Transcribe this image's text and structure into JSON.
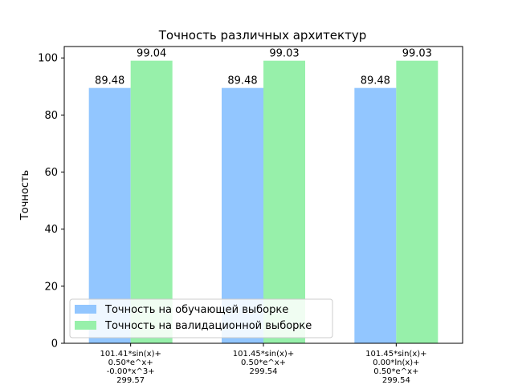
{
  "chart_data": {
    "type": "bar",
    "title": "Точность различных архитектур",
    "xlabel": "",
    "ylabel": "Точность",
    "ylim": [
      0,
      104
    ],
    "yticks": [
      0,
      20,
      40,
      60,
      80,
      100
    ],
    "grid": false,
    "legend_position": "lower-left",
    "categories": [
      [
        "101.41*sin(x)+",
        "0.50*e^x+",
        "-0.00*x^3+",
        "299.57"
      ],
      [
        "101.45*sin(x)+",
        "0.50*e^x+",
        "299.54"
      ],
      [
        "101.45*sin(x)+",
        "0.00*ln(x)+",
        "0.50*e^x+",
        "299.54"
      ]
    ],
    "series": [
      {
        "name": "Точность на обучающей выборке",
        "color": "#92c6ff",
        "values": [
          89.48,
          89.48,
          89.48
        ],
        "labels": [
          "89.48",
          "89.48",
          "89.48"
        ]
      },
      {
        "name": "Точность на валидационной выборке",
        "color": "#97f0aa",
        "values": [
          99.04,
          99.03,
          99.03
        ],
        "labels": [
          "99.04",
          "99.03",
          "99.03"
        ]
      }
    ]
  }
}
